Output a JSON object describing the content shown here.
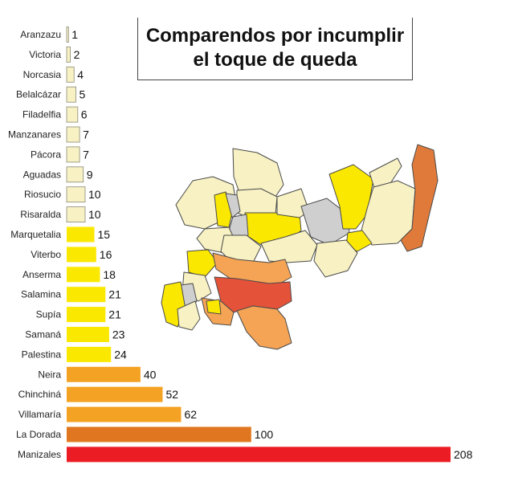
{
  "title": {
    "line1": "Comparendos por incumplir",
    "line2": "el toque de queda"
  },
  "colors": {
    "low": "#f7f1c3",
    "mid": "#fbe800",
    "high": "#f4a224",
    "higher": "#e07720",
    "max": "#ec1c24",
    "gray": "#cfcfcf",
    "map_orange_light": "#f5a455",
    "map_orange_dark": "#e07a3a",
    "map_red": "#e5523a"
  },
  "chart_data": {
    "type": "bar",
    "orientation": "horizontal",
    "categories": [
      "Aranzazu",
      "Victoria",
      "Norcasia",
      "Belalcázar",
      "Filadelfia",
      "Manzanares",
      "Pácora",
      "Aguadas",
      "Riosucio",
      "Risaralda",
      "Marquetalia",
      "Viterbo",
      "Anserma",
      "Salamina",
      "Supía",
      "Samaná",
      "Palestina",
      "Neira",
      "Chinchiná",
      "Villamaría",
      "La Dorada",
      "Manizales"
    ],
    "values": [
      1,
      2,
      4,
      5,
      6,
      7,
      7,
      9,
      10,
      10,
      15,
      16,
      18,
      21,
      21,
      23,
      24,
      40,
      52,
      62,
      100,
      208
    ],
    "title": "Comparendos por incumplir el toque de queda",
    "xlabel": "",
    "ylabel": "",
    "xlim": [
      0,
      208
    ],
    "grid": false,
    "legend": "none"
  }
}
